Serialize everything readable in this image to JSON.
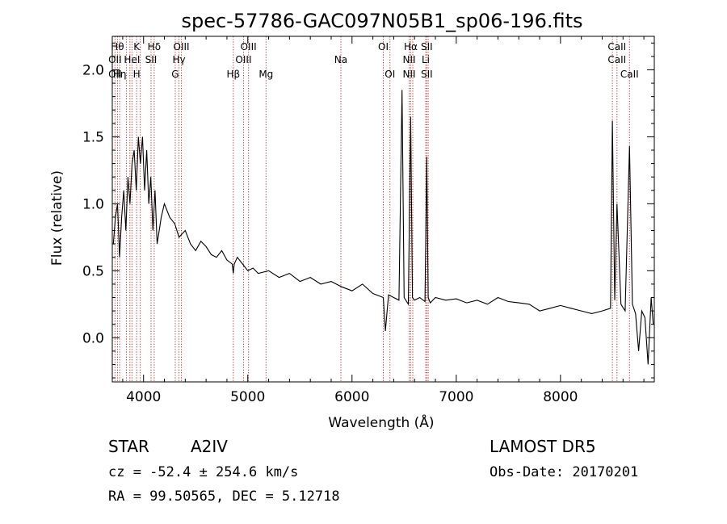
{
  "chart_data": {
    "type": "line",
    "title": "spec-57786-GAC097N05B1_sp06-196.fits",
    "xlabel": "Wavelength (Å)",
    "ylabel": "Flux (relative)",
    "xlim": [
      3700,
      8900
    ],
    "ylim": [
      -0.33,
      2.25
    ],
    "xticks": [
      4000,
      5000,
      6000,
      7000,
      8000
    ],
    "xtick_labels": [
      "4000",
      "5000",
      "6000",
      "7000",
      "8000"
    ],
    "yticks": [
      0.0,
      0.5,
      1.0,
      1.5,
      2.0
    ],
    "ytick_labels": [
      "0.0",
      "0.5",
      "1.0",
      "1.5",
      "2.0"
    ],
    "grid": false,
    "line_color": "#000000",
    "marker_color": "#b0302a",
    "series": [
      {
        "x": [
          3710,
          3730,
          3750,
          3770,
          3790,
          3810,
          3830,
          3850,
          3870,
          3890,
          3910,
          3930,
          3950,
          3970,
          3990,
          4010,
          4030,
          4050,
          4070,
          4090,
          4110,
          4130,
          4150,
          4170,
          4200,
          4250,
          4300,
          4340,
          4400,
          4450,
          4500,
          4550,
          4600,
          4650,
          4700,
          4750,
          4800,
          4850,
          4861,
          4870,
          4900,
          4950,
          5000,
          5050,
          5100,
          5200,
          5300,
          5400,
          5500,
          5600,
          5700,
          5800,
          5900,
          6000,
          6100,
          6200,
          6300,
          6320,
          6350,
          6400,
          6450,
          6480,
          6500,
          6540,
          6563,
          6580,
          6600,
          6650,
          6700,
          6717,
          6731,
          6750,
          6800,
          6900,
          7000,
          7100,
          7200,
          7300,
          7400,
          7500,
          7600,
          7700,
          7800,
          7900,
          8000,
          8100,
          8200,
          8300,
          8400,
          8480,
          8498,
          8520,
          8542,
          8580,
          8620,
          8662,
          8690,
          8720,
          8750,
          8780,
          8810,
          8840,
          8870,
          8890
        ],
        "y": [
          0.7,
          0.9,
          1.0,
          0.6,
          0.9,
          1.1,
          0.8,
          1.2,
          1.0,
          1.3,
          1.4,
          1.1,
          1.5,
          1.3,
          1.5,
          1.1,
          1.4,
          1.0,
          1.2,
          0.8,
          1.1,
          0.7,
          0.8,
          0.9,
          1.0,
          0.9,
          0.85,
          0.75,
          0.8,
          0.7,
          0.65,
          0.72,
          0.68,
          0.62,
          0.6,
          0.65,
          0.58,
          0.55,
          0.48,
          0.55,
          0.6,
          0.55,
          0.5,
          0.52,
          0.48,
          0.5,
          0.45,
          0.48,
          0.42,
          0.45,
          0.4,
          0.42,
          0.38,
          0.35,
          0.4,
          0.33,
          0.3,
          0.05,
          0.32,
          0.3,
          0.28,
          1.85,
          0.3,
          0.25,
          1.65,
          0.3,
          0.28,
          0.3,
          0.27,
          1.35,
          0.3,
          0.26,
          0.3,
          0.28,
          0.29,
          0.26,
          0.28,
          0.25,
          0.3,
          0.27,
          0.26,
          0.25,
          0.2,
          0.22,
          0.24,
          0.22,
          0.2,
          0.18,
          0.2,
          0.22,
          1.62,
          0.28,
          1.0,
          0.25,
          0.2,
          1.43,
          0.25,
          0.18,
          -0.1,
          0.2,
          0.15,
          -0.2,
          0.3,
          0.1
        ]
      }
    ],
    "lines": [
      {
        "x": 3726,
        "labels": [
          "",
          "OII",
          "OII"
        ]
      },
      {
        "x": 3750,
        "labels": [
          "Hθ",
          "",
          ""
        ]
      },
      {
        "x": 3771,
        "labels": [
          "",
          "",
          "Hη"
        ]
      },
      {
        "x": 3835,
        "labels": [
          "",
          "",
          ""
        ]
      },
      {
        "x": 3869,
        "labels": [
          "",
          "",
          ""
        ]
      },
      {
        "x": 3889,
        "labels": [
          "",
          "HeI",
          ""
        ]
      },
      {
        "x": 3934,
        "labels": [
          "K",
          "",
          "H"
        ]
      },
      {
        "x": 3968,
        "labels": [
          "",
          "",
          ""
        ]
      },
      {
        "x": 4072,
        "labels": [
          "",
          "SII",
          ""
        ]
      },
      {
        "x": 4102,
        "labels": [
          "Hδ",
          "",
          ""
        ]
      },
      {
        "x": 4304,
        "labels": [
          "",
          "",
          "G"
        ]
      },
      {
        "x": 4340,
        "labels": [
          "",
          "Hγ",
          ""
        ]
      },
      {
        "x": 4363,
        "labels": [
          "OIII",
          "",
          ""
        ]
      },
      {
        "x": 4861,
        "labels": [
          "",
          "",
          "Hβ"
        ]
      },
      {
        "x": 4959,
        "labels": [
          "",
          "OIII",
          ""
        ]
      },
      {
        "x": 5007,
        "labels": [
          "OIII",
          "",
          ""
        ]
      },
      {
        "x": 5175,
        "labels": [
          "",
          "",
          "Mg"
        ]
      },
      {
        "x": 5893,
        "labels": [
          "",
          "Na",
          ""
        ]
      },
      {
        "x": 6300,
        "labels": [
          "OI",
          "",
          ""
        ]
      },
      {
        "x": 6364,
        "labels": [
          "",
          "",
          "OI"
        ]
      },
      {
        "x": 6548,
        "labels": [
          "",
          "NII",
          "NII"
        ]
      },
      {
        "x": 6563,
        "labels": [
          "Hα",
          "",
          ""
        ]
      },
      {
        "x": 6583,
        "labels": [
          "",
          "",
          ""
        ]
      },
      {
        "x": 6707,
        "labels": [
          "",
          "Li",
          ""
        ]
      },
      {
        "x": 6717,
        "labels": [
          "SII",
          "",
          "SII"
        ]
      },
      {
        "x": 6731,
        "labels": [
          "",
          "",
          ""
        ]
      },
      {
        "x": 8498,
        "labels": [
          "",
          "",
          ""
        ]
      },
      {
        "x": 8542,
        "labels": [
          "CaII",
          "CaII",
          ""
        ]
      },
      {
        "x": 8662,
        "labels": [
          "",
          "",
          "CaII"
        ]
      }
    ]
  },
  "footer": {
    "class_label": "STAR",
    "subclass": "A2IV",
    "survey": "LAMOST DR5",
    "redshift": "cz = -52.4 ± 254.6 km/s",
    "obs_date": "Obs-Date: 20170201",
    "coords": "RA =  99.50565, DEC =   5.12718"
  }
}
